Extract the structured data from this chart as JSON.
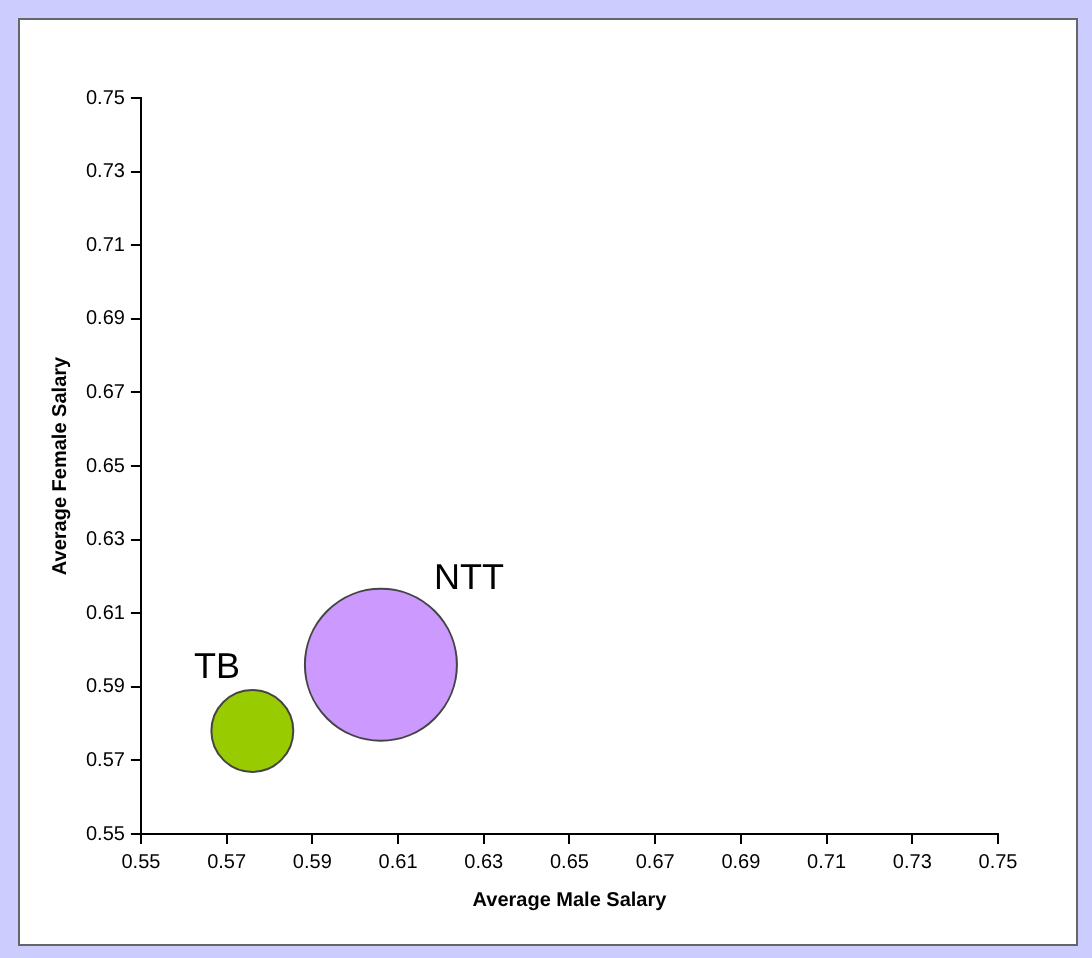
{
  "chart_data": {
    "type": "bubble",
    "xlabel": "Average Male Salary",
    "ylabel": "Average Female Salary",
    "xlim": [
      0.55,
      0.75
    ],
    "xticks": [
      0.55,
      0.57,
      0.59,
      0.61,
      0.63,
      0.65,
      0.67,
      0.69,
      0.71,
      0.73,
      0.75
    ],
    "ylim": [
      0.55,
      0.75
    ],
    "yticks": [
      0.55,
      0.57,
      0.59,
      0.61,
      0.63,
      0.65,
      0.67,
      0.69,
      0.71,
      0.73,
      0.75
    ],
    "series": [
      {
        "name": "TB",
        "color": "#99cc00",
        "x": [
          0.576
        ],
        "values": [
          0.578
        ],
        "sizes": [
          0.29
        ]
      },
      {
        "name": "NTT",
        "color": "#cc99ff",
        "x": [
          0.606
        ],
        "values": [
          0.596
        ],
        "sizes": [
          1
        ]
      }
    ],
    "grid": false,
    "legend": false
  }
}
